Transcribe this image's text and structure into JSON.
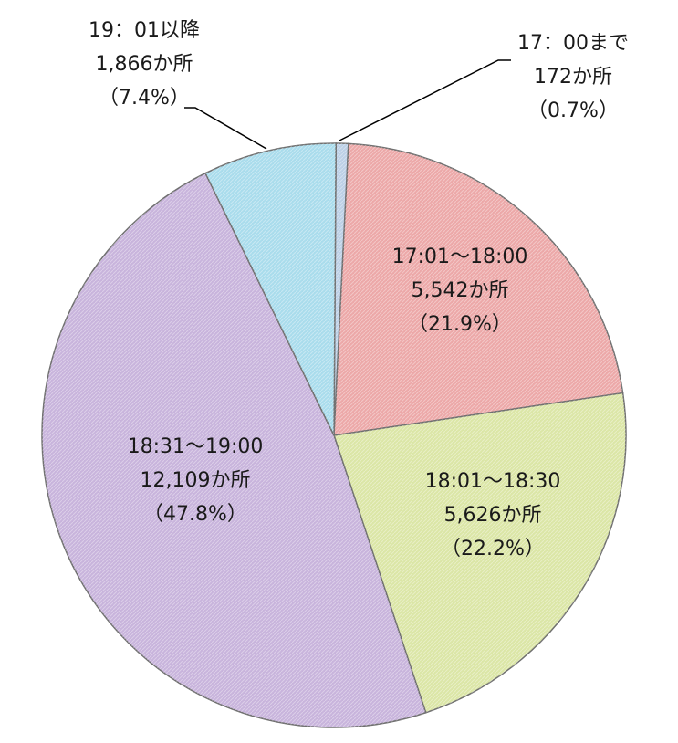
{
  "chart_data": {
    "type": "pie",
    "title": "",
    "legend": "none",
    "slices": [
      {
        "category": "17：00まで",
        "count": 172,
        "count_label": "172か所",
        "percent": 0.7,
        "percent_label": "（0.7%）",
        "color": "#bcd0e6"
      },
      {
        "category": "17:01～18:00",
        "count": 5542,
        "count_label": "5,542か所",
        "percent": 21.9,
        "percent_label": "（21.9%）",
        "color": "#eca8a8"
      },
      {
        "category": "18:01～18:30",
        "count": 5626,
        "count_label": "5,626か所",
        "percent": 22.2,
        "percent_label": "（22.2%）",
        "color": "#dbe6a6"
      },
      {
        "category": "18:31～19:00",
        "count": 12109,
        "count_label": "12,109か所",
        "percent": 47.8,
        "percent_label": "（47.8%）",
        "color": "#c8b4dc"
      },
      {
        "category": "19：01以降",
        "count": 1866,
        "count_label": "1,866か所",
        "percent": 7.4,
        "percent_label": "（7.4%）",
        "color": "#a9dcec"
      }
    ]
  }
}
